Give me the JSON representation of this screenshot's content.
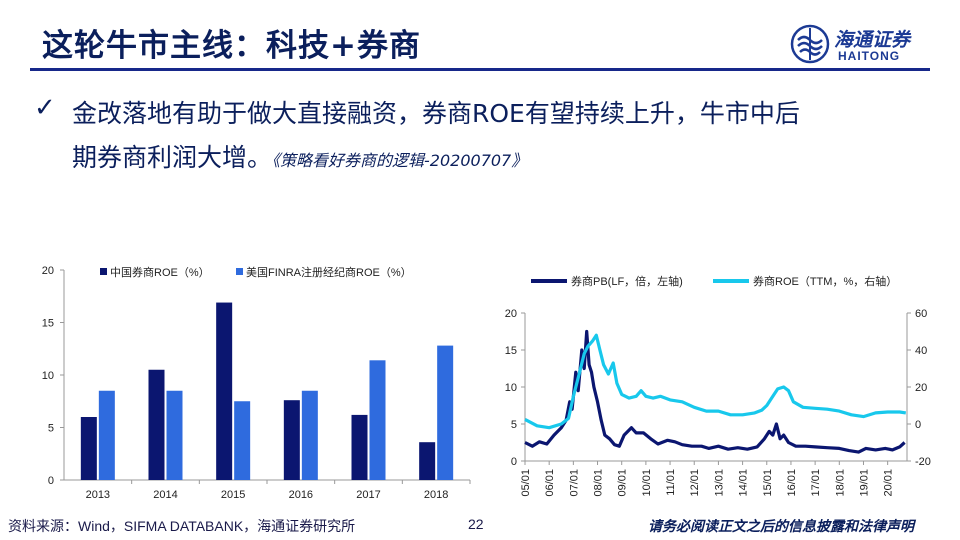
{
  "header": {
    "title": "这轮牛市主线：科技+券商",
    "logo_cn": "海通证券",
    "logo_en": "HAITONG"
  },
  "body": {
    "bullet": "✓",
    "text_line1": "金改落地有助于做大直接融资，券商ROE有望持续上升，牛市中后",
    "text_line2": "期券商利润大增。",
    "source": "《策略看好券商的逻辑-20200707》"
  },
  "footer": {
    "source": "资料来源：Wind，SIFMA DATABANK，海通证券研究所",
    "page": "22",
    "disclaimer": "请务必阅读正文之后的信息披露和法律声明"
  },
  "colors": {
    "navy": "#0b1670",
    "blue": "#2f6bde",
    "cyan": "#18c8ec",
    "title": "#0b1f5c"
  },
  "chart_data": [
    {
      "type": "bar",
      "categories": [
        "2013",
        "2014",
        "2015",
        "2016",
        "2017",
        "2018"
      ],
      "series": [
        {
          "name": "中国券商ROE（%）",
          "values": [
            6.0,
            10.5,
            16.9,
            7.6,
            6.2,
            3.6
          ]
        },
        {
          "name": "美国FINRA注册经纪商ROE（%）",
          "values": [
            8.5,
            8.5,
            7.5,
            8.5,
            11.4,
            12.8
          ]
        }
      ],
      "ylim": [
        0,
        20
      ],
      "yticks": [
        "0",
        "5",
        "10",
        "15",
        "20"
      ],
      "legend": "top",
      "grid": false
    },
    {
      "type": "line",
      "x_labels": [
        "05/01",
        "06/01",
        "07/01",
        "08/01",
        "09/01",
        "10/01",
        "11/01",
        "12/01",
        "13/01",
        "14/01",
        "15/01",
        "16/01",
        "17/01",
        "18/01",
        "19/01",
        "20/01"
      ],
      "x_range": [
        2005.0,
        2020.8
      ],
      "y_left": {
        "range": [
          0,
          20
        ],
        "ticks": [
          "0",
          "5",
          "10",
          "15",
          "20"
        ]
      },
      "y_right": {
        "range": [
          -20,
          60
        ],
        "ticks": [
          "-20",
          "0",
          "20",
          "40",
          "60"
        ]
      },
      "legend": "top",
      "grid": false,
      "series": [
        {
          "name": "券商PB(LF，倍，左轴)",
          "axis": "left",
          "points": [
            [
              2005.0,
              2.5
            ],
            [
              2005.3,
              2.0
            ],
            [
              2005.6,
              2.6
            ],
            [
              2005.9,
              2.3
            ],
            [
              2006.2,
              3.5
            ],
            [
              2006.5,
              4.5
            ],
            [
              2006.7,
              5.5
            ],
            [
              2006.85,
              8.0
            ],
            [
              2006.95,
              7.0
            ],
            [
              2007.1,
              12.0
            ],
            [
              2007.2,
              9.5
            ],
            [
              2007.35,
              15.0
            ],
            [
              2007.45,
              12.5
            ],
            [
              2007.55,
              17.5
            ],
            [
              2007.65,
              13.0
            ],
            [
              2007.75,
              12.0
            ],
            [
              2007.85,
              10.0
            ],
            [
              2008.0,
              8.0
            ],
            [
              2008.15,
              5.5
            ],
            [
              2008.3,
              3.5
            ],
            [
              2008.5,
              3.0
            ],
            [
              2008.7,
              2.2
            ],
            [
              2008.9,
              2.0
            ],
            [
              2009.1,
              3.5
            ],
            [
              2009.4,
              4.5
            ],
            [
              2009.6,
              3.8
            ],
            [
              2009.9,
              3.8
            ],
            [
              2010.2,
              3.0
            ],
            [
              2010.5,
              2.3
            ],
            [
              2010.9,
              2.8
            ],
            [
              2011.2,
              2.6
            ],
            [
              2011.5,
              2.2
            ],
            [
              2011.9,
              2.0
            ],
            [
              2012.3,
              2.0
            ],
            [
              2012.6,
              1.7
            ],
            [
              2013.0,
              2.0
            ],
            [
              2013.4,
              1.6
            ],
            [
              2013.8,
              1.8
            ],
            [
              2014.2,
              1.6
            ],
            [
              2014.6,
              1.9
            ],
            [
              2014.9,
              3.0
            ],
            [
              2015.1,
              4.0
            ],
            [
              2015.25,
              3.5
            ],
            [
              2015.4,
              5.0
            ],
            [
              2015.55,
              3.0
            ],
            [
              2015.7,
              3.5
            ],
            [
              2015.9,
              2.5
            ],
            [
              2016.2,
              2.0
            ],
            [
              2016.6,
              2.0
            ],
            [
              2017.0,
              1.9
            ],
            [
              2017.5,
              1.8
            ],
            [
              2018.0,
              1.7
            ],
            [
              2018.4,
              1.4
            ],
            [
              2018.8,
              1.2
            ],
            [
              2019.1,
              1.7
            ],
            [
              2019.5,
              1.5
            ],
            [
              2019.9,
              1.7
            ],
            [
              2020.2,
              1.5
            ],
            [
              2020.5,
              1.9
            ],
            [
              2020.7,
              2.5
            ]
          ]
        },
        {
          "name": "券商ROE（TTM，%，右轴）",
          "axis": "right",
          "points": [
            [
              2005.0,
              2.5
            ],
            [
              2005.5,
              -1.0
            ],
            [
              2006.0,
              -2.0
            ],
            [
              2006.5,
              0.0
            ],
            [
              2006.8,
              3.0
            ],
            [
              2007.0,
              15.0
            ],
            [
              2007.2,
              25.0
            ],
            [
              2007.45,
              38.0
            ],
            [
              2007.6,
              42.0
            ],
            [
              2007.8,
              45.0
            ],
            [
              2007.95,
              48.0
            ],
            [
              2008.1,
              40.0
            ],
            [
              2008.25,
              32.0
            ],
            [
              2008.45,
              27.0
            ],
            [
              2008.65,
              33.0
            ],
            [
              2008.8,
              22.0
            ],
            [
              2009.0,
              16.0
            ],
            [
              2009.3,
              14.0
            ],
            [
              2009.6,
              15.0
            ],
            [
              2009.8,
              18.0
            ],
            [
              2010.0,
              15.0
            ],
            [
              2010.3,
              14.0
            ],
            [
              2010.6,
              15.0
            ],
            [
              2011.0,
              13.0
            ],
            [
              2011.5,
              12.0
            ],
            [
              2012.0,
              9.0
            ],
            [
              2012.5,
              7.0
            ],
            [
              2013.0,
              7.0
            ],
            [
              2013.5,
              5.0
            ],
            [
              2014.0,
              5.0
            ],
            [
              2014.5,
              6.0
            ],
            [
              2014.8,
              7.5
            ],
            [
              2015.0,
              10.0
            ],
            [
              2015.2,
              14.0
            ],
            [
              2015.45,
              19.0
            ],
            [
              2015.7,
              20.0
            ],
            [
              2015.9,
              18.0
            ],
            [
              2016.1,
              12.0
            ],
            [
              2016.5,
              9.0
            ],
            [
              2017.0,
              8.5
            ],
            [
              2017.5,
              8.0
            ],
            [
              2018.0,
              7.0
            ],
            [
              2018.5,
              5.0
            ],
            [
              2019.0,
              4.0
            ],
            [
              2019.5,
              6.0
            ],
            [
              2020.0,
              6.5
            ],
            [
              2020.5,
              6.5
            ],
            [
              2020.75,
              6.0
            ]
          ]
        }
      ]
    }
  ]
}
